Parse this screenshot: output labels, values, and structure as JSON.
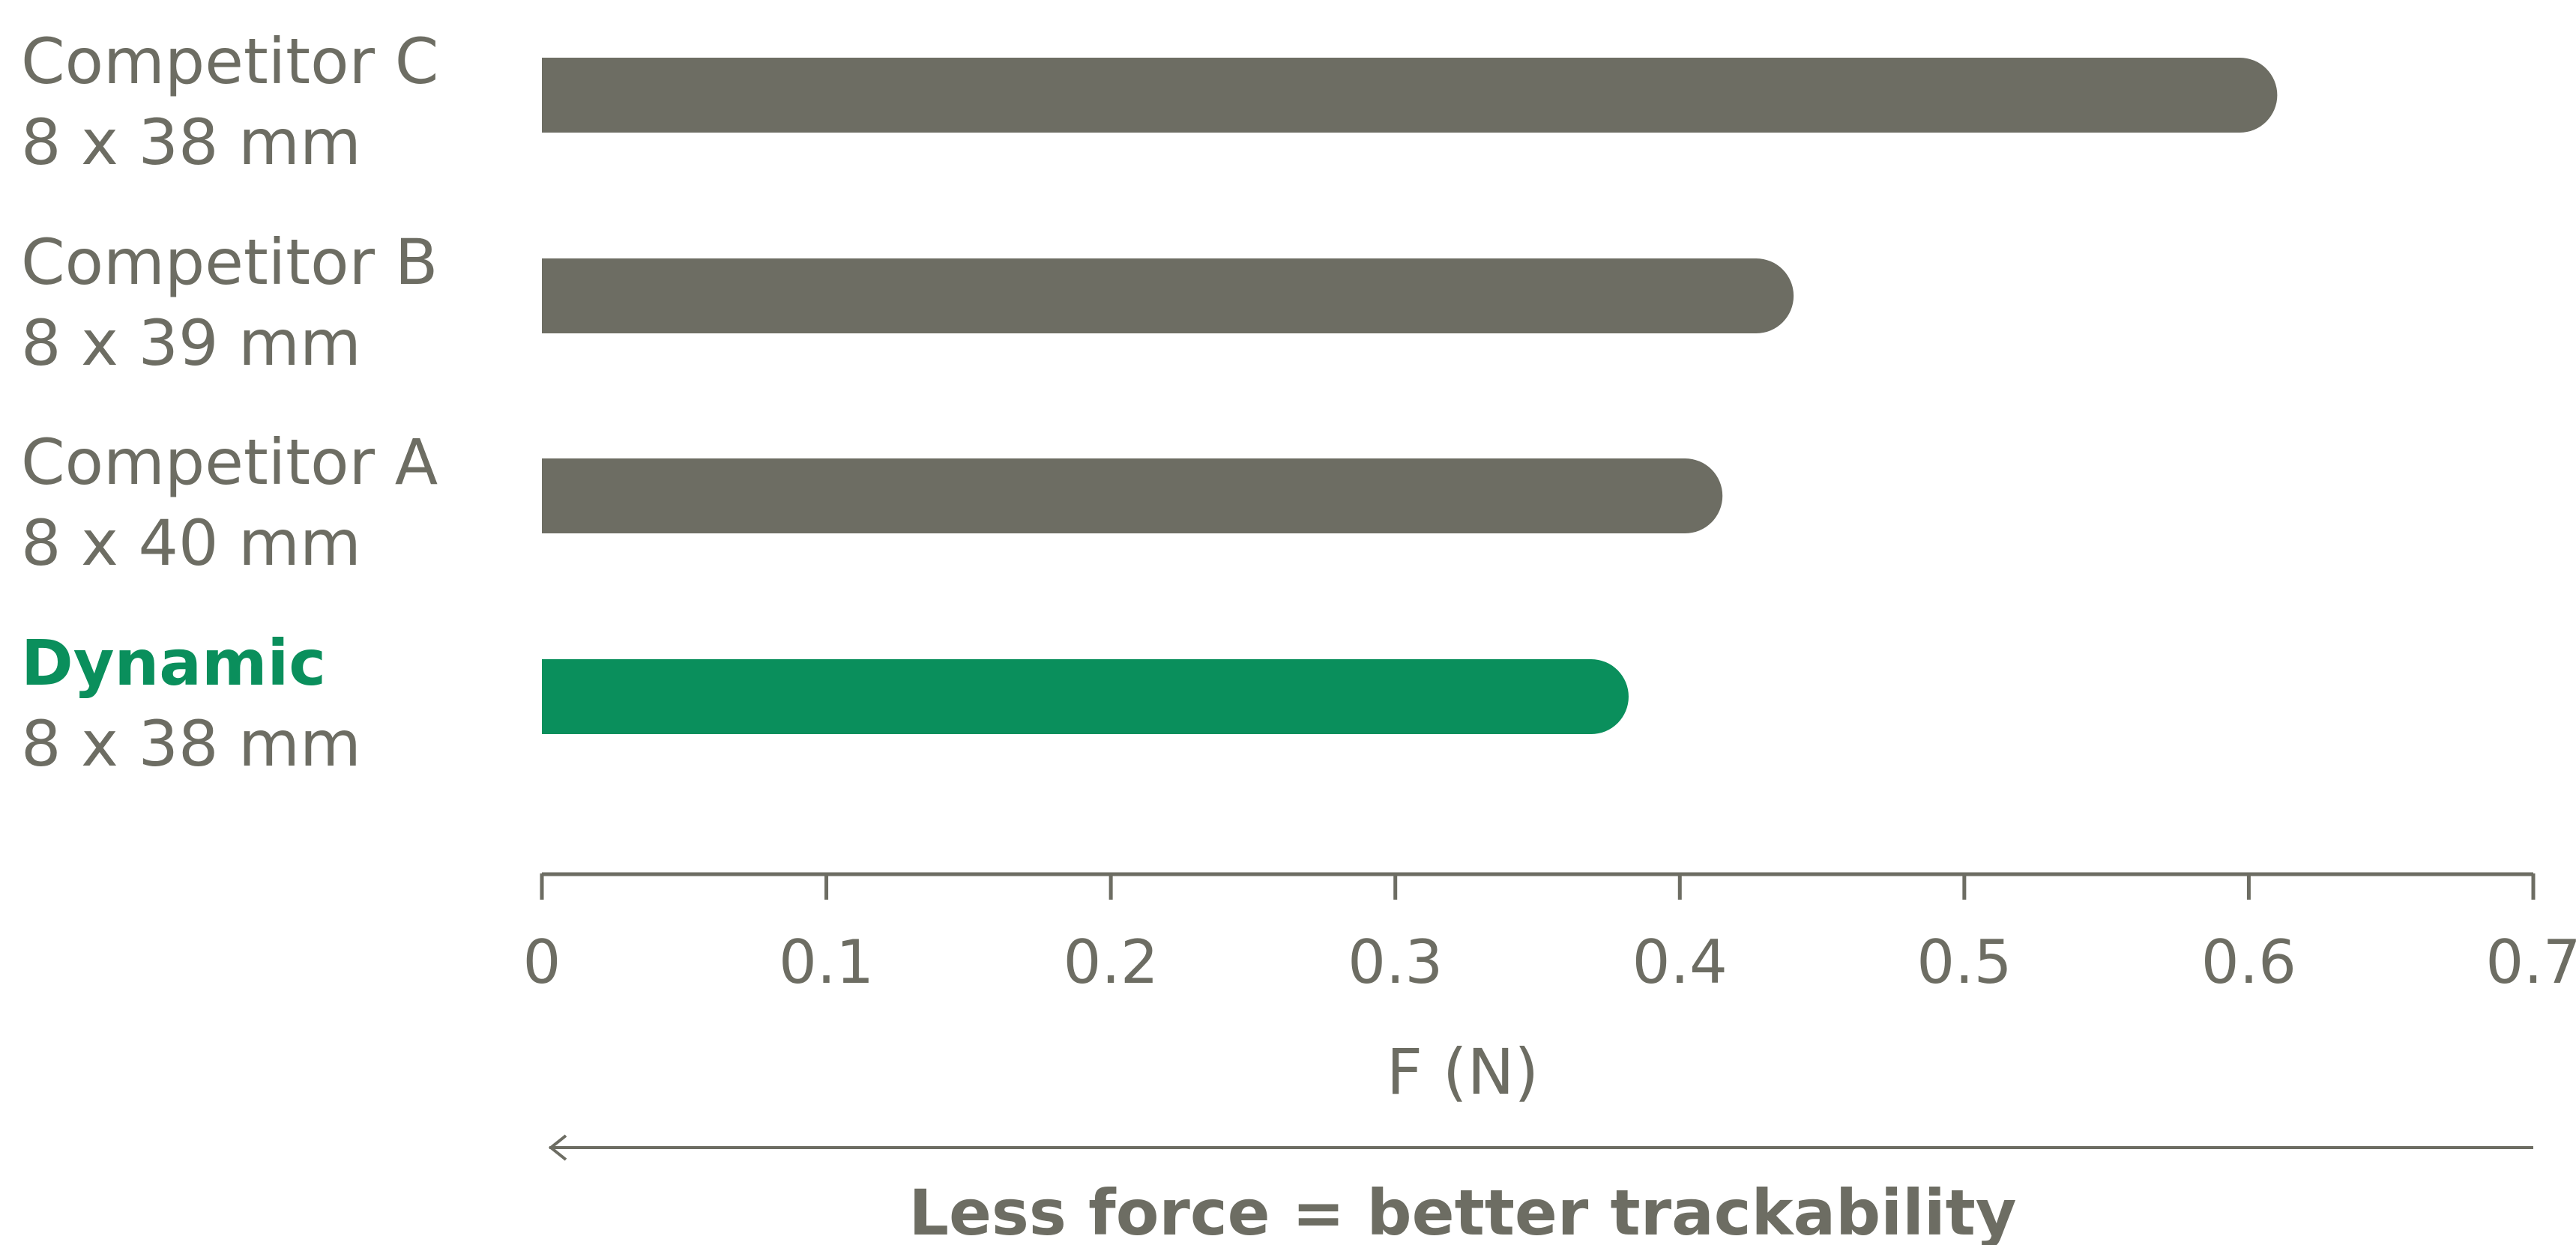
{
  "chart_data": {
    "type": "bar",
    "orientation": "horizontal",
    "categories": [
      {
        "name": "Competitor C",
        "detail": "8 x 38 mm"
      },
      {
        "name": "Competitor B",
        "detail": "8 x 39 mm"
      },
      {
        "name": "Competitor A",
        "detail": "8 x 40 mm"
      },
      {
        "name": "Dynamic",
        "detail": "8 x 38 mm",
        "highlight": true
      }
    ],
    "values": [
      0.61,
      0.44,
      0.415,
      0.382
    ],
    "xlabel": "F (N)",
    "xlim": [
      0,
      0.7
    ],
    "xticks": [
      "0",
      "0.1",
      "0.2",
      "0.3",
      "0.4",
      "0.5",
      "0.6",
      "0.7"
    ],
    "grid": false,
    "annotation": "Less force = better trackability",
    "annotation_arrow": "right-to-left",
    "colors": {
      "bar": "#6d6d63",
      "highlight_bar": "#0a8f5c",
      "text": "#6d6d63",
      "highlight_text": "#0a8f5c",
      "axis": "#6d6d63"
    }
  }
}
